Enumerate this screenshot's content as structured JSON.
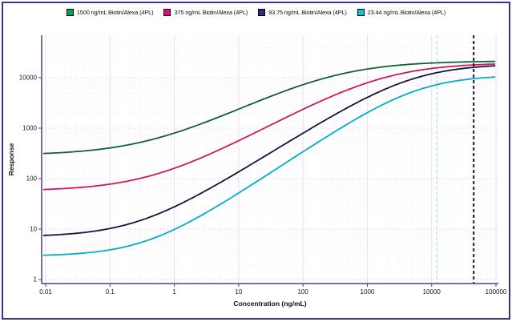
{
  "panel": {
    "border_color": "#3d3389",
    "background": "#ffffff"
  },
  "legend": {
    "position": "top center",
    "items": [
      {
        "label": "1500 ng/mL Biotin/Alexa (4PL)",
        "marker_color": "#00a550"
      },
      {
        "label": "375 ng/mL Biotin/Alexa (4PL)",
        "marker_color": "#ec008c"
      },
      {
        "label": "93.75 ng/mL Biotin/Alexa (4PL)",
        "marker_color": "#2a2a85"
      },
      {
        "label": "23.44 ng/mL Biotin/Alexa (4PL)",
        "marker_color": "#00c8da"
      }
    ]
  },
  "chart_data": {
    "type": "line",
    "title": "",
    "xlabel": "Concentration (ng/mL)",
    "ylabel": "Response",
    "x_scale": "log",
    "y_scale": "log",
    "xlim": [
      0.01,
      100000
    ],
    "ylim": [
      0.9,
      70000
    ],
    "x_ticks": [
      0.01,
      0.1,
      1,
      10,
      100,
      1000,
      10000,
      100000
    ],
    "x_tick_labels": [
      "0.01",
      "0.1",
      "1",
      "10",
      "100",
      "1000",
      "10000",
      "100000"
    ],
    "y_ticks": [
      1,
      10,
      100,
      1000,
      10000
    ],
    "y_tick_labels": [
      "1",
      "10",
      "100",
      "1000",
      "10000"
    ],
    "grid": "faint dotted log minor + major gridlines",
    "axis_color": "#4c3f9c",
    "gridline_major_color": "#eadced",
    "gridline_minor_color": "#f6eef5",
    "series": [
      {
        "name": "1500 ng/mL Biotin/Alexa (4PL)",
        "color": "#0e6332",
        "model": "4PL",
        "params_4pl": {
          "lower_asymptote": 290,
          "upper_asymptote": 21500,
          "ec50": 300,
          "hill": 0.65
        },
        "x_samples": [
          0.01,
          0.1,
          1,
          10,
          100,
          1000,
          10000,
          100000
        ],
        "y_samples": [
          316,
          406,
          797,
          2386,
          7267,
          14847,
          19532,
          21025
        ]
      },
      {
        "name": "375 ng/mL Biotin/Alexa (4PL)",
        "color": "#d3175c",
        "model": "4PL",
        "params_4pl": {
          "lower_asymptote": 57,
          "upper_asymptote": 19800,
          "ec50": 1800,
          "hill": 0.7
        },
        "x_samples": [
          0.01,
          0.1,
          1,
          10,
          100,
          1000,
          10000,
          100000
        ],
        "y_samples": [
          61,
          78,
          160,
          565,
          2363,
          7926,
          15232,
          18679
        ]
      },
      {
        "name": "93.75 ng/mL Biotin/Alexa (4PL)",
        "color": "#14143e",
        "model": "4PL",
        "params_4pl": {
          "lower_asymptote": 7,
          "upper_asymptote": 18800,
          "ec50": 5000,
          "hill": 0.8
        },
        "x_samples": [
          0.01,
          0.1,
          1,
          10,
          100,
          1000,
          10000,
          100000
        ],
        "y_samples": [
          7.5,
          10,
          28,
          136,
          793,
          4075,
          11945,
          17234
        ]
      },
      {
        "name": "23.44 ng/mL Biotin/Alexa (4PL)",
        "color": "#00aec8",
        "model": "4PL",
        "params_4pl": {
          "lower_asymptote": 2.9,
          "upper_asymptote": 11300,
          "ec50": 6000,
          "hill": 0.85
        },
        "x_samples": [
          0.01,
          0.1,
          1,
          10,
          100,
          1000,
          10000,
          100000
        ],
        "y_samples": [
          3,
          3.9,
          9.8,
          52,
          340,
          2024,
          6858,
          10350
        ]
      }
    ],
    "reference_lines": [
      {
        "orientation": "vertical",
        "x": 12000,
        "style": "dashed",
        "color": "#7de4ef",
        "width": 1
      },
      {
        "orientation": "vertical",
        "x": 45000,
        "style": "dashed",
        "color": "#181840",
        "width": 2
      }
    ],
    "legend_position": "top center"
  }
}
